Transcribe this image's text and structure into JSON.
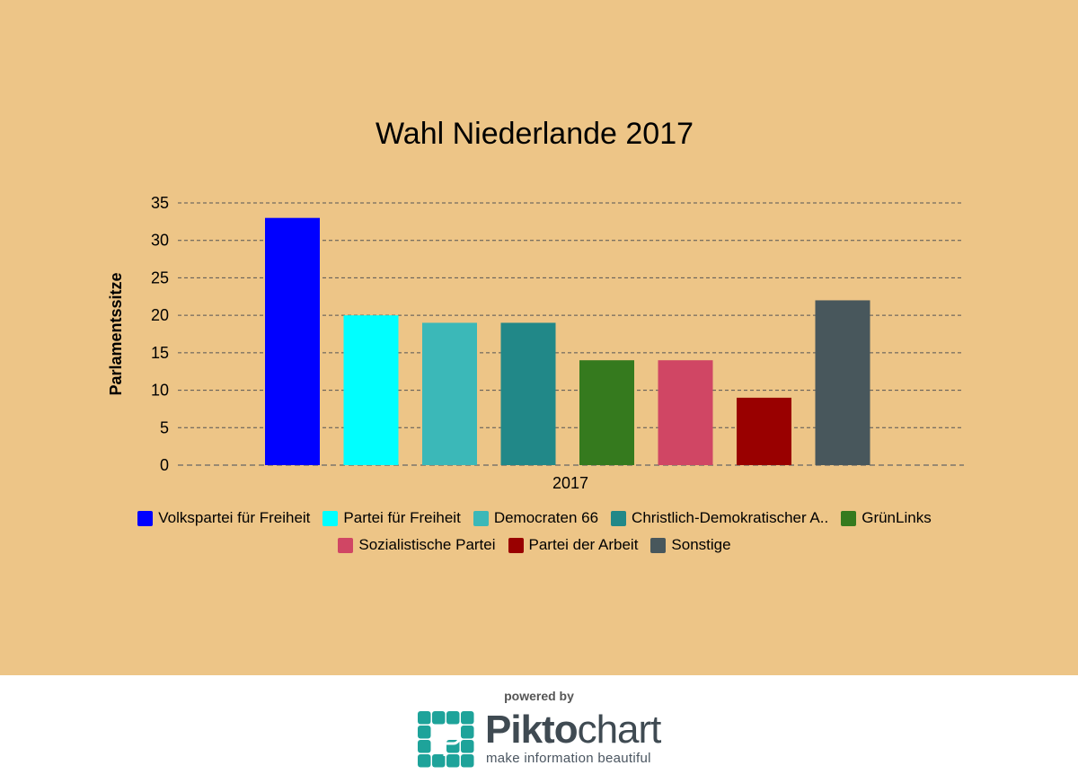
{
  "chart_data": {
    "type": "bar",
    "title": "Wahl Niederlande 2017",
    "ylabel": "Parlamentssitze",
    "xlabel": "",
    "categories": [
      "2017"
    ],
    "ylim": [
      0,
      35
    ],
    "yticks": [
      0,
      5,
      10,
      15,
      20,
      25,
      30,
      35
    ],
    "grid": true,
    "legend_placement": "bottom",
    "series": [
      {
        "name": "Volkspartei für Freiheit",
        "values": [
          33
        ],
        "color": "#0000ff"
      },
      {
        "name": "Partei für Freiheit",
        "values": [
          20
        ],
        "color": "#00ffff"
      },
      {
        "name": "Democraten 66",
        "values": [
          19
        ],
        "color": "#3bb8b8"
      },
      {
        "name": "Christlich-Demokratischer A..",
        "values": [
          19
        ],
        "color": "#218888"
      },
      {
        "name": "GrünLinks",
        "values": [
          14
        ],
        "color": "#357a1e"
      },
      {
        "name": "Sozialistische Partei",
        "values": [
          14
        ],
        "color": "#d04664"
      },
      {
        "name": "Partei der Arbeit",
        "values": [
          9
        ],
        "color": "#990000"
      },
      {
        "name": "Sonstige",
        "values": [
          22
        ],
        "color": "#48575c"
      }
    ]
  },
  "footer": {
    "powered_by": "powered by",
    "brand_bold": "Pikto",
    "brand_light": "chart",
    "tagline": "make information beautiful"
  },
  "colors": {
    "background": "#edc587",
    "logo_teal": "#1ea39a"
  }
}
